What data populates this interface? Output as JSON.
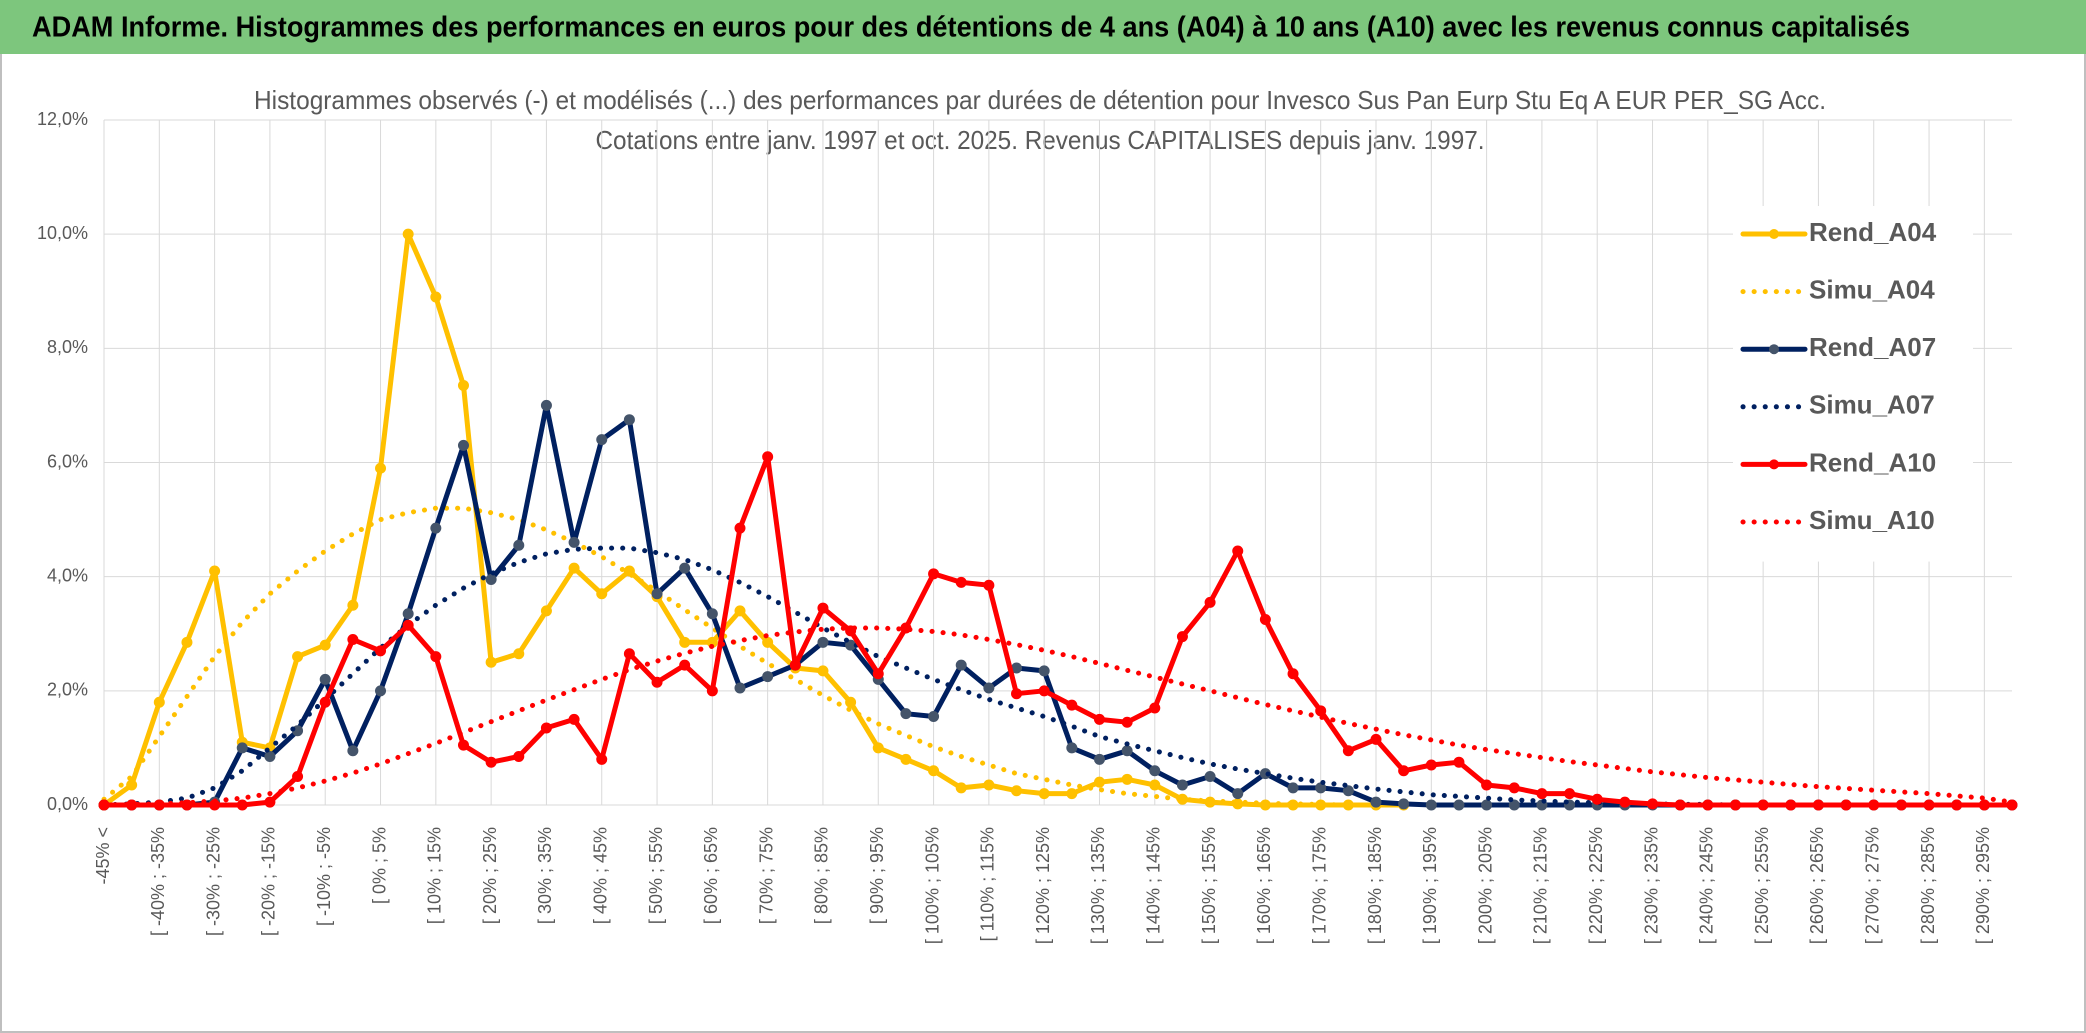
{
  "chart_data": {
    "type": "line",
    "header": "ADAM Informe. Histogrammes des performances en euros pour des détentions de 4 ans (A04) à 10 ans (A10) avec les revenus connus capitalisés",
    "title": "Histogrammes observés (-) et modélisés (...) des performances par durées de détention pour Invesco Sus Pan Eurp Stu Eq A EUR PER_SG Acc.",
    "subtitle": "Cotations entre janv. 1997 et oct. 2025. Revenus CAPITALISES depuis janv. 1997.",
    "categories": [
      "-45% <",
      null,
      "[ -40% ; -35%",
      null,
      "[ -30% ; -25%",
      null,
      "[ -20% ; -15%",
      null,
      "[ -10% ; -5%",
      null,
      "[ 0% ; 5%",
      null,
      "[ 10% ; 15%",
      null,
      "[ 20% ; 25%",
      null,
      "[ 30% ; 35%",
      null,
      "[ 40% ; 45%",
      null,
      "[ 50% ; 55%",
      null,
      "[ 60% ; 65%",
      null,
      "[ 70% ; 75%",
      null,
      "[ 80% ; 85%",
      null,
      "[ 90% ; 95%",
      null,
      "[ 100% ; 105%",
      null,
      "[ 110% ; 115%",
      null,
      "[ 120% ; 125%",
      null,
      "[ 130% ; 135%",
      null,
      "[ 140% ; 145%",
      null,
      "[ 150% ; 155%",
      null,
      "[ 160% ; 165%",
      null,
      "[ 170% ; 175%",
      null,
      "[ 180% ; 185%",
      null,
      "[ 190% ; 195%",
      null,
      "[ 200% ; 205%",
      null,
      "[ 210% ; 215%",
      null,
      "[ 220% ; 225%",
      null,
      "[ 230% ; 235%",
      null,
      "[ 240% ; 245%",
      null,
      "[ 250% ; 255%",
      null,
      "[ 260% ; 265%",
      null,
      "[ 270% ; 275%",
      null,
      "[ 280% ; 285%",
      null,
      "[ 290% ; 295%",
      null
    ],
    "ylim": [
      0,
      12
    ],
    "yticks": [
      {
        "value": 0,
        "label": "0,0%"
      },
      {
        "value": 2,
        "label": "2,0%"
      },
      {
        "value": 4,
        "label": "4,0%"
      },
      {
        "value": 6,
        "label": "6,0%"
      },
      {
        "value": 8,
        "label": "8,0%"
      },
      {
        "value": 10,
        "label": "10,0%"
      },
      {
        "value": 12,
        "label": "12,0%"
      }
    ],
    "grid": true,
    "legend": "right",
    "series": [
      {
        "name": "Rend_A04",
        "color": "#ffc000",
        "style": "solid",
        "marker": true,
        "marker_color": "#ffc000",
        "values": [
          0,
          0.35,
          1.8,
          2.85,
          4.1,
          1.1,
          1.0,
          2.6,
          2.8,
          3.5,
          5.9,
          10.0,
          8.9,
          7.35,
          2.5,
          2.65,
          3.4,
          4.15,
          3.7,
          4.1,
          3.65,
          2.85,
          2.85,
          3.4,
          2.85,
          2.4,
          2.35,
          1.8,
          1.0,
          0.8,
          0.6,
          0.3,
          0.35,
          0.25,
          0.2,
          0.2,
          0.4,
          0.45,
          0.35,
          0.1,
          0.05,
          0.02,
          0,
          0,
          0,
          0,
          0,
          0,
          null,
          null,
          null,
          null,
          null,
          null,
          null,
          null,
          null,
          null,
          null,
          null,
          null,
          null,
          null,
          null,
          null,
          null,
          null,
          null,
          null,
          null
        ]
      },
      {
        "name": "Simu_A04",
        "color": "#ffc000",
        "style": "dotted",
        "marker": false,
        "values": [
          0.1,
          0.5,
          1.2,
          1.9,
          2.6,
          3.2,
          3.7,
          4.1,
          4.45,
          4.75,
          5.0,
          5.12,
          5.2,
          5.2,
          5.12,
          5.0,
          4.82,
          4.6,
          4.35,
          4.05,
          3.75,
          3.42,
          3.1,
          2.78,
          2.48,
          2.2,
          1.92,
          1.66,
          1.42,
          1.22,
          1.02,
          0.85,
          0.7,
          0.55,
          0.45,
          0.35,
          0.27,
          0.2,
          0.15,
          0.1,
          0.07,
          0.05,
          0.03,
          0.02,
          0.01,
          0,
          0,
          0,
          null,
          null,
          null,
          null,
          null,
          null,
          null,
          null,
          null,
          null,
          null,
          null,
          null,
          null,
          null,
          null,
          null,
          null,
          null,
          null,
          null,
          null
        ]
      },
      {
        "name": "Rend_A07",
        "color": "#002060",
        "style": "solid",
        "marker": true,
        "marker_color": "#44546a",
        "values": [
          0,
          0,
          0,
          0,
          0.05,
          1.0,
          0.85,
          1.3,
          2.2,
          0.95,
          2.0,
          3.35,
          4.85,
          6.3,
          3.95,
          4.55,
          7.0,
          4.6,
          6.4,
          6.75,
          3.7,
          4.15,
          3.35,
          2.05,
          2.25,
          2.45,
          2.85,
          2.8,
          2.2,
          1.6,
          1.55,
          2.45,
          2.05,
          2.4,
          2.35,
          1.0,
          0.8,
          0.95,
          0.6,
          0.35,
          0.5,
          0.2,
          0.55,
          0.3,
          0.3,
          0.25,
          0.05,
          0.02,
          0,
          0,
          0,
          0,
          0,
          0,
          0,
          0,
          0,
          0,
          0,
          0,
          0,
          0,
          0,
          0,
          0,
          0,
          0,
          0,
          0,
          0
        ]
      },
      {
        "name": "Simu_A07",
        "color": "#002060",
        "style": "dotted",
        "marker": false,
        "values": [
          0,
          0.02,
          0.05,
          0.12,
          0.3,
          0.6,
          1.0,
          1.4,
          1.85,
          2.3,
          2.75,
          3.15,
          3.5,
          3.8,
          4.05,
          4.25,
          4.4,
          4.48,
          4.5,
          4.5,
          4.42,
          4.3,
          4.12,
          3.9,
          3.65,
          3.38,
          3.1,
          2.85,
          2.6,
          2.4,
          2.2,
          2.02,
          1.85,
          1.7,
          1.55,
          1.38,
          1.2,
          1.07,
          0.95,
          0.83,
          0.72,
          0.63,
          0.55,
          0.47,
          0.4,
          0.34,
          0.28,
          0.23,
          0.18,
          0.15,
          0.12,
          0.09,
          0.07,
          0.05,
          0.04,
          0.03,
          0.02,
          0.01,
          0.01,
          0,
          null,
          null,
          null,
          null,
          null,
          null,
          null,
          null,
          null,
          null
        ]
      },
      {
        "name": "Rend_A10",
        "color": "#ff0000",
        "style": "solid",
        "marker": true,
        "marker_color": "#ff0000",
        "values": [
          0,
          0,
          0,
          0,
          0,
          0,
          0.05,
          0.5,
          1.8,
          2.9,
          2.7,
          3.15,
          2.6,
          1.05,
          0.75,
          0.85,
          1.35,
          1.5,
          0.8,
          2.65,
          2.15,
          2.45,
          2.0,
          4.85,
          6.1,
          2.45,
          3.45,
          3.05,
          2.3,
          3.1,
          4.05,
          3.9,
          3.85,
          1.95,
          2.0,
          1.75,
          1.5,
          1.45,
          1.7,
          2.95,
          3.55,
          4.45,
          3.25,
          2.3,
          1.65,
          0.95,
          1.15,
          0.6,
          0.7,
          0.75,
          0.35,
          0.3,
          0.2,
          0.2,
          0.1,
          0.05,
          0.02,
          0,
          0,
          0,
          0,
          0,
          0,
          0,
          0,
          0,
          0,
          0,
          0,
          0
        ]
      },
      {
        "name": "Simu_A10",
        "color": "#ff0000",
        "style": "dotted",
        "marker": false,
        "values": [
          0,
          0.01,
          0.02,
          0.04,
          0.07,
          0.12,
          0.2,
          0.3,
          0.42,
          0.56,
          0.72,
          0.9,
          1.08,
          1.27,
          1.46,
          1.65,
          1.84,
          2.02,
          2.2,
          2.37,
          2.52,
          2.66,
          2.78,
          2.88,
          2.97,
          3.03,
          3.08,
          3.1,
          3.1,
          3.08,
          3.04,
          2.98,
          2.9,
          2.81,
          2.71,
          2.6,
          2.48,
          2.36,
          2.24,
          2.12,
          2.0,
          1.88,
          1.76,
          1.65,
          1.54,
          1.43,
          1.33,
          1.23,
          1.14,
          1.05,
          0.97,
          0.9,
          0.83,
          0.76,
          0.7,
          0.64,
          0.58,
          0.53,
          0.48,
          0.44,
          0.4,
          0.36,
          0.32,
          0.29,
          0.26,
          0.23,
          0.2,
          0.16,
          0.12,
          0.05
        ]
      }
    ]
  }
}
